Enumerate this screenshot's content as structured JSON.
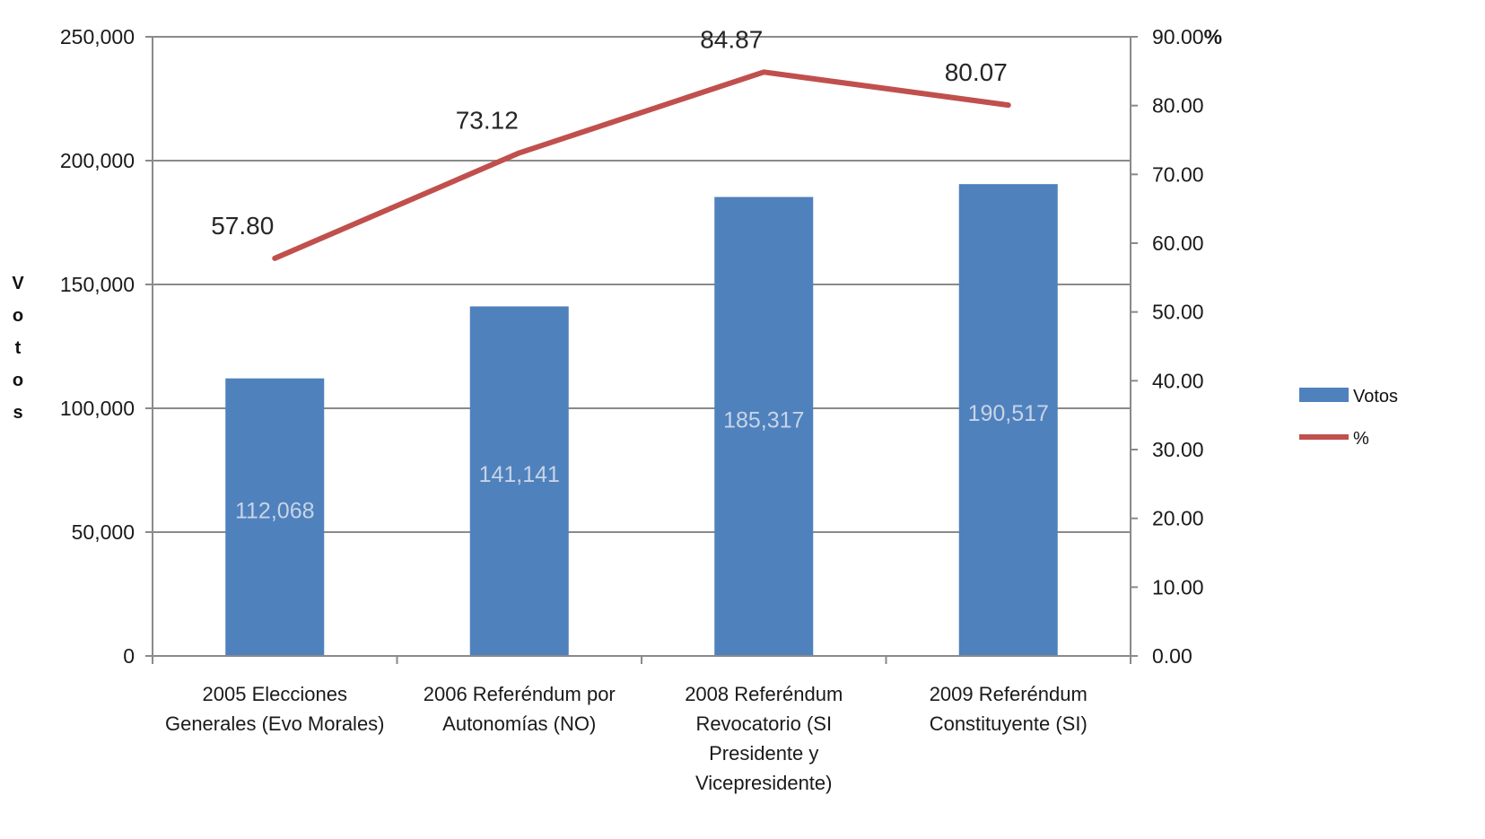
{
  "chart_data": {
    "type": "bar",
    "categories": [
      [
        "2005 Elecciones",
        "Generales (Evo Morales)"
      ],
      [
        "2006 Referéndum por",
        "Autonomías  (NO)"
      ],
      [
        "2008 Referéndum",
        "Revocatorio (SI",
        "Presidente y",
        "Vicepresidente)"
      ],
      [
        "2009 Referéndum",
        "Constituyente (SI)"
      ]
    ],
    "series": [
      {
        "name": "Votos",
        "type": "bar",
        "axis": "left",
        "values": [
          112068,
          141141,
          185317,
          190517
        ],
        "labels": [
          "112,068",
          "141,141",
          "185,317",
          "190,517"
        ],
        "label_shown": [
          true,
          true,
          true,
          true
        ],
        "color": "#4f81bd"
      },
      {
        "name": "%",
        "type": "line",
        "axis": "right",
        "values": [
          57.8,
          73.12,
          84.87,
          80.07
        ],
        "labels": [
          "57.80",
          "73.12",
          "84.87",
          "80.07"
        ],
        "color": "#c0504d"
      }
    ],
    "ylabel": "V o t o s",
    "ylim": [
      0,
      250000
    ],
    "y_ticks": [
      "0",
      "50,000",
      "100,000",
      "150,000",
      "200,000",
      "250,000"
    ],
    "y2lim": [
      0,
      90
    ],
    "y2_ticks": [
      "0.00",
      "10.00",
      "20.00",
      "30.00",
      "40.00",
      "50.00",
      "60.00",
      "70.00",
      "80.00",
      "90.00"
    ],
    "y2_unit": "%",
    "grid": true,
    "legend": {
      "position": "right",
      "entries": [
        "Votos",
        "%"
      ]
    }
  }
}
